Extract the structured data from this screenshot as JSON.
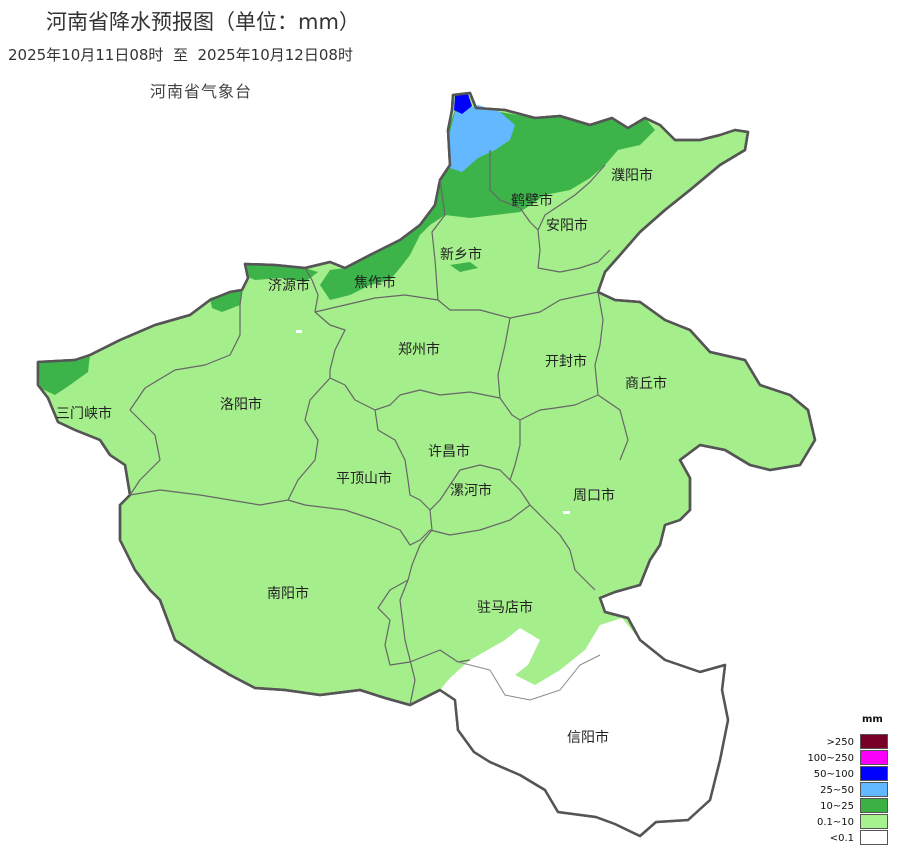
{
  "header": {
    "title": "河南省降水预报图（单位：mm）",
    "period": "2025年10月11日08时  至  2025年10月12日08时",
    "issuer": "河南省气象台"
  },
  "colors": {
    "light_green": "#a5ee8c",
    "mid_green": "#3cb44a",
    "light_blue": "#63b8ff",
    "blue": "#0000ff",
    "white": "#ffffff",
    "border": "#555555"
  },
  "cities": [
    "三门峡市",
    "洛阳市",
    "济源市",
    "焦作市",
    "新乡市",
    "鹤壁市",
    "安阳市",
    "濮阳市",
    "郑州市",
    "开封市",
    "商丘市",
    "许昌市",
    "平顶山市",
    "漯河市",
    "周口市",
    "南阳市",
    "驻马店市",
    "信阳市"
  ],
  "legend": {
    "unit": "mm",
    "items": [
      {
        "label": ">250",
        "color": "#780028"
      },
      {
        "label": "100~250",
        "color": "#fa00fa"
      },
      {
        "label": "50~100",
        "color": "#0000fe"
      },
      {
        "label": "25~50",
        "color": "#61b8ff"
      },
      {
        "label": "10~25",
        "color": "#3ab142"
      },
      {
        "label": "0.1~10",
        "color": "#a6f28f"
      },
      {
        "label": "<0.1",
        "color": "#ffffff"
      }
    ]
  }
}
